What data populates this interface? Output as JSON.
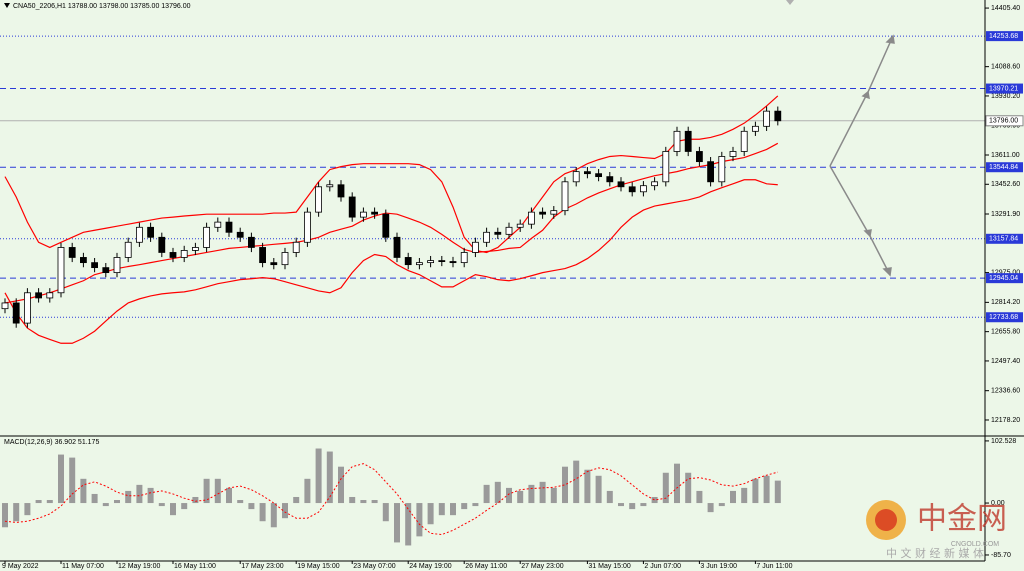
{
  "chart_data": [
    {
      "type": "candlestick",
      "title": "CNA50_2206,H1 13788.00 13798.00 13785.00 13796.00",
      "categories": [
        "9 May 2022",
        null,
        null,
        null,
        null,
        "11 May 07:00",
        null,
        null,
        null,
        null,
        "12 May 19:00",
        null,
        null,
        null,
        null,
        "16 May 11:00",
        null,
        null,
        null,
        null,
        null,
        "17 May 23:00",
        null,
        null,
        null,
        null,
        "19 May 15:00",
        null,
        null,
        null,
        null,
        "23 May 07:00",
        null,
        null,
        null,
        null,
        "24 May 19:00",
        null,
        null,
        null,
        null,
        "26 May 11:00",
        null,
        null,
        null,
        null,
        "27 May 23:00",
        null,
        null,
        null,
        null,
        null,
        "31 May 15:00",
        null,
        null,
        null,
        null,
        "2 Jun 07:00",
        null,
        null,
        null,
        null,
        "3 Jun 19:00",
        null,
        null,
        null,
        null,
        "7 Jun 11:00",
        null,
        null
      ],
      "open": [
        12780,
        12811,
        12702,
        12866,
        12838,
        12866,
        13111,
        13057,
        13029,
        13002,
        12975,
        13057,
        13139,
        13220,
        13166,
        13084,
        13057,
        13095,
        13111,
        13220,
        13248,
        13193,
        13166,
        13111,
        13029,
        13018,
        13084,
        13139,
        13302,
        13439,
        13450,
        13384,
        13275,
        13302,
        13291,
        13166,
        13057,
        13018,
        13029,
        13040,
        13035,
        13029,
        13084,
        13139,
        13193,
        13182,
        13220,
        13237,
        13302,
        13291,
        13310,
        13466,
        13521,
        13510,
        13494,
        13466,
        13439,
        13412,
        13445,
        13466,
        13630,
        13739,
        13630,
        13575,
        13466,
        13603,
        13630,
        13739,
        13766,
        13848
      ],
      "high": [
        12836,
        12836,
        12891,
        12891,
        12891,
        13136,
        13136,
        13082,
        13054,
        13027,
        13082,
        13164,
        13245,
        13245,
        13191,
        13109,
        13120,
        13136,
        13245,
        13273,
        13273,
        13218,
        13191,
        13136,
        13054,
        13109,
        13164,
        13327,
        13464,
        13475,
        13475,
        13409,
        13327,
        13327,
        13316,
        13191,
        13082,
        13054,
        13065,
        13065,
        13060,
        13109,
        13164,
        13218,
        13218,
        13245,
        13262,
        13327,
        13327,
        13335,
        13491,
        13546,
        13546,
        13535,
        13519,
        13491,
        13464,
        13470,
        13491,
        13655,
        13764,
        13764,
        13655,
        13600,
        13628,
        13655,
        13764,
        13791,
        13873,
        13873
      ],
      "low": [
        12755,
        12677,
        12677,
        12813,
        12813,
        12841,
        13032,
        13004,
        12977,
        12950,
        12950,
        13032,
        13114,
        13141,
        13059,
        13032,
        13032,
        13070,
        13086,
        13195,
        13168,
        13141,
        13086,
        13004,
        12993,
        12993,
        13059,
        13114,
        13277,
        13414,
        13359,
        13250,
        13250,
        13266,
        13141,
        13032,
        12993,
        12993,
        13004,
        13010,
        13004,
        13004,
        13059,
        13114,
        13157,
        13157,
        13195,
        13212,
        13266,
        13266,
        13285,
        13441,
        13485,
        13469,
        13441,
        13414,
        13387,
        13387,
        13420,
        13441,
        13605,
        13605,
        13550,
        13441,
        13441,
        13578,
        13605,
        13714,
        13741,
        13771
      ],
      "close": [
        12811,
        12702,
        12866,
        12838,
        12866,
        13111,
        13057,
        13029,
        13002,
        12975,
        13057,
        13139,
        13220,
        13166,
        13084,
        13057,
        13095,
        13111,
        13220,
        13248,
        13193,
        13166,
        13111,
        13029,
        13018,
        13084,
        13139,
        13302,
        13439,
        13450,
        13384,
        13275,
        13302,
        13291,
        13166,
        13057,
        13018,
        13029,
        13040,
        13035,
        13029,
        13084,
        13139,
        13193,
        13182,
        13220,
        13237,
        13302,
        13291,
        13310,
        13466,
        13521,
        13510,
        13494,
        13466,
        13439,
        13412,
        13445,
        13466,
        13630,
        13739,
        13630,
        13575,
        13466,
        13603,
        13630,
        13739,
        13766,
        13848,
        13796
      ],
      "up_color": "#ffffff",
      "down_color": "#000000",
      "color": "#000000",
      "bands": {
        "color": "#ff0000",
        "upper": [
          13494,
          13384,
          13248,
          13139,
          13111,
          13139,
          13166,
          13193,
          13204,
          13215,
          13226,
          13237,
          13248,
          13259,
          13270,
          13275,
          13281,
          13286,
          13291,
          13291,
          13291,
          13291,
          13291,
          13291,
          13297,
          13297,
          13302,
          13384,
          13466,
          13532,
          13548,
          13559,
          13564,
          13564,
          13564,
          13564,
          13564,
          13559,
          13532,
          13466,
          13330,
          13166,
          13095,
          13084,
          13111,
          13166,
          13220,
          13302,
          13384,
          13466,
          13510,
          13532,
          13564,
          13586,
          13603,
          13608,
          13603,
          13597,
          13592,
          13619,
          13685,
          13696,
          13696,
          13706,
          13723,
          13750,
          13783,
          13827,
          13876,
          13930
        ],
        "middle": [
          12811,
          12822,
          12833,
          12849,
          12866,
          12887,
          12909,
          12931,
          12964,
          12980,
          12997,
          13008,
          13018,
          13029,
          13040,
          13051,
          13062,
          13073,
          13084,
          13095,
          13106,
          13111,
          13117,
          13122,
          13128,
          13133,
          13139,
          13150,
          13166,
          13193,
          13210,
          13226,
          13259,
          13281,
          13297,
          13291,
          13270,
          13248,
          13220,
          13182,
          13139,
          13100,
          13084,
          13089,
          13095,
          13106,
          13111,
          13160,
          13204,
          13275,
          13319,
          13346,
          13379,
          13406,
          13428,
          13450,
          13466,
          13483,
          13499,
          13510,
          13521,
          13537,
          13548,
          13559,
          13575,
          13586,
          13597,
          13619,
          13641,
          13674
        ],
        "lower": [
          12866,
          12756,
          12675,
          12636,
          12614,
          12593,
          12593,
          12620,
          12658,
          12713,
          12767,
          12811,
          12833,
          12849,
          12860,
          12866,
          12871,
          12882,
          12898,
          12915,
          12926,
          12937,
          12942,
          12948,
          12942,
          12926,
          12909,
          12893,
          12876,
          12866,
          12893,
          12975,
          13040,
          13073,
          13062,
          13018,
          12986,
          12964,
          12931,
          12898,
          12898,
          12931,
          12964,
          12953,
          12937,
          12931,
          12942,
          12958,
          12975,
          12986,
          12997,
          13018,
          13051,
          13095,
          13150,
          13220,
          13275,
          13313,
          13335,
          13346,
          13357,
          13368,
          13384,
          13412,
          13434,
          13455,
          13477,
          13477,
          13455,
          13450
        ]
      },
      "ylim": [
        12097,
        14449
      ],
      "yticks": [
        {
          "value": 14405.4,
          "label": "14405.40"
        },
        {
          "value": 14088.6,
          "label": "14088.60"
        },
        {
          "value": 13930.2,
          "label": "13930.20"
        },
        {
          "value": 13769.9,
          "label": "13769.90"
        },
        {
          "value": 13611,
          "label": "13611.00"
        },
        {
          "value": 13452.6,
          "label": "13452.60"
        },
        {
          "value": 13291.9,
          "label": "13291.90"
        },
        {
          "value": 12975,
          "label": "12975.00"
        },
        {
          "value": 12814.2,
          "label": "12814.20"
        },
        {
          "value": 12655.8,
          "label": "12655.80"
        },
        {
          "value": 12497.4,
          "label": "12497.40"
        },
        {
          "value": 12336.6,
          "label": "12336.60"
        },
        {
          "value": 12178.2,
          "label": "12178.20"
        }
      ],
      "levels": [
        {
          "value": 14253.68,
          "style": "dotted"
        },
        {
          "value": 13970.21,
          "style": "dashed"
        },
        {
          "value": 13544.84,
          "style": "dashed"
        },
        {
          "value": 13157.84,
          "style": "dotted"
        },
        {
          "value": 12945.04,
          "style": "dashed"
        },
        {
          "value": 12733.68,
          "style": "dotted"
        }
      ],
      "level_color": "#2a3ad8",
      "current_price": {
        "value": 13796,
        "label": "13796.00"
      }
    },
    {
      "type": "macd",
      "title": "MACD(12,26,9) 36.902 51.175",
      "values": [
        -40,
        -30,
        -20,
        5,
        5,
        80,
        75,
        40,
        15,
        -5,
        5,
        20,
        30,
        25,
        -5,
        -20,
        -10,
        10,
        40,
        40,
        25,
        5,
        -10,
        -30,
        -40,
        -25,
        10,
        40,
        90,
        85,
        60,
        10,
        5,
        5,
        -30,
        -65,
        -70,
        -55,
        -35,
        -20,
        -20,
        -10,
        -5,
        30,
        35,
        25,
        20,
        30,
        35,
        25,
        60,
        70,
        55,
        45,
        20,
        -5,
        -10,
        -5,
        10,
        50,
        65,
        50,
        20,
        -15,
        -5,
        20,
        25,
        40,
        45,
        37
      ],
      "signal": [
        -30,
        -32,
        -30,
        -25,
        -18,
        -5,
        15,
        30,
        35,
        28,
        18,
        12,
        12,
        17,
        20,
        15,
        8,
        3,
        5,
        15,
        25,
        28,
        22,
        12,
        0,
        -15,
        -25,
        -25,
        -15,
        10,
        40,
        60,
        65,
        55,
        35,
        15,
        -10,
        -35,
        -50,
        -52,
        -45,
        -35,
        -25,
        -12,
        0,
        15,
        22,
        24,
        25,
        26,
        30,
        40,
        52,
        58,
        55,
        45,
        30,
        15,
        5,
        8,
        25,
        40,
        42,
        38,
        30,
        28,
        32,
        40,
        46,
        51
      ],
      "color": "#9a9a9a",
      "signal_color": "#ff0000",
      "ylim": [
        -94,
        109
      ],
      "yticks": [
        102.528,
        {
          "value": 0,
          "label": "0.00"
        },
        {
          "value": -85.7,
          "label": "-85.70"
        }
      ]
    }
  ],
  "watermark": {
    "logo": "中金网",
    "site": "CNGOLD.COM",
    "tagline": "中 文 财 经 新 媒 体"
  }
}
